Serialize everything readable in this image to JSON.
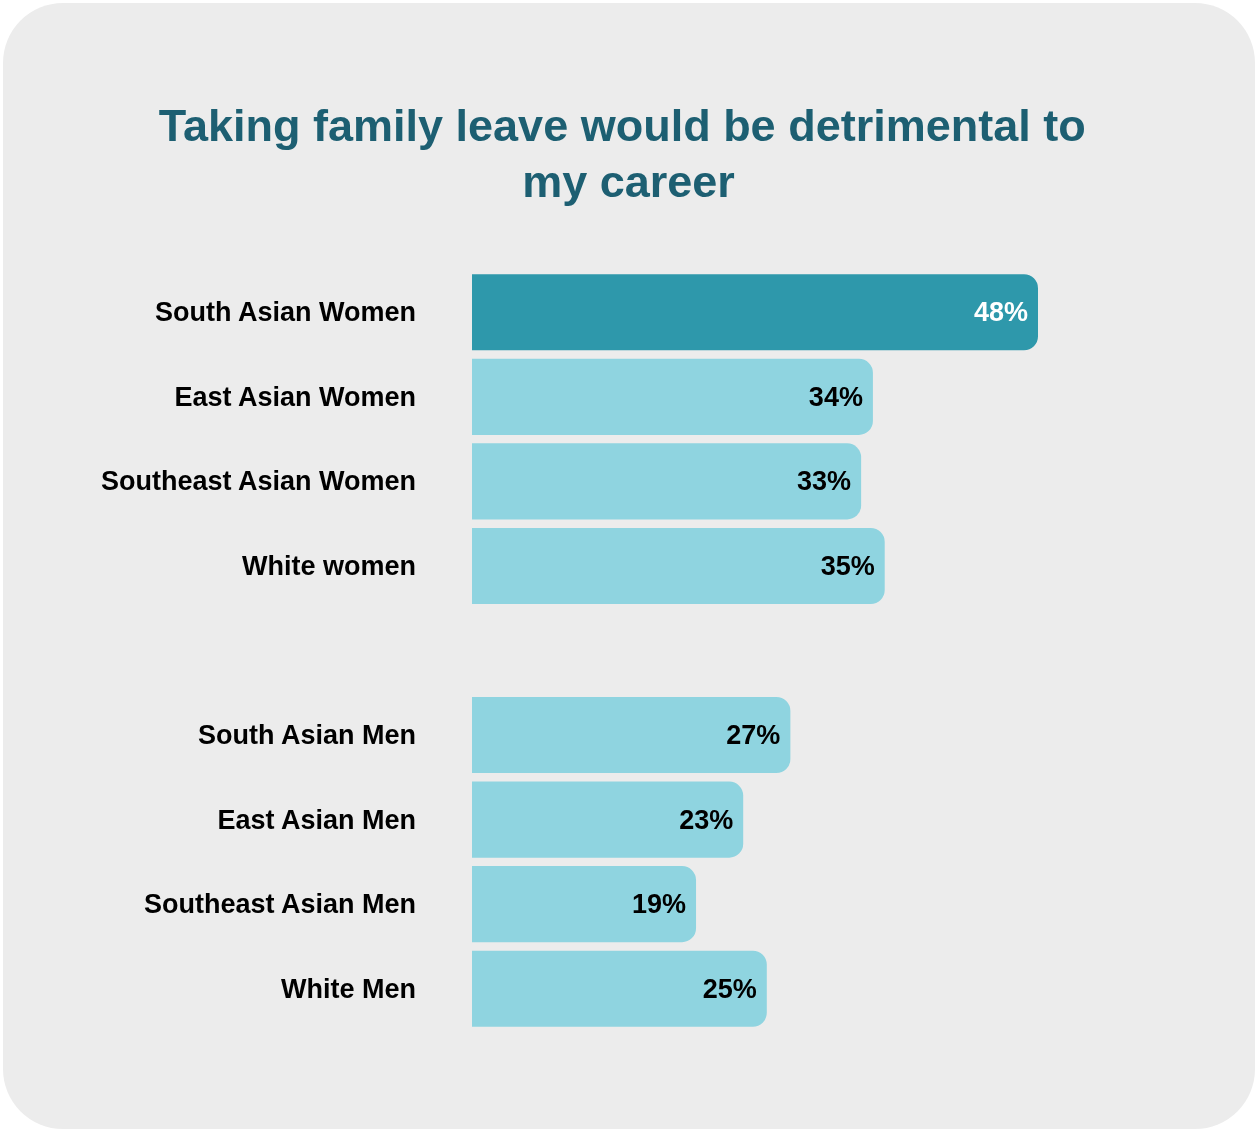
{
  "chart_data": {
    "type": "bar",
    "orientation": "horizontal",
    "title": "Taking family leave would be detrimental to my career",
    "categories": [
      "South Asian Women",
      "East Asian Women",
      "Southeast Asian Women",
      "White women",
      null,
      "South Asian Men",
      "East Asian Men",
      "Southeast Asian Men",
      "White Men"
    ],
    "values": [
      48,
      34,
      33,
      35,
      null,
      27,
      23,
      19,
      25
    ],
    "colors": [
      "#2e98ab",
      "#8fd4e0",
      "#8fd4e0",
      "#8fd4e0",
      "#8fd4e0",
      "#8fd4e0",
      "#8fd4e0",
      "#8fd4e0",
      "#8fd4e0"
    ],
    "value_labels": [
      "48%",
      "34%",
      "33%",
      "35%",
      null,
      "27%",
      "23%",
      "19%",
      "25%"
    ],
    "tick_labels": "y"
  }
}
